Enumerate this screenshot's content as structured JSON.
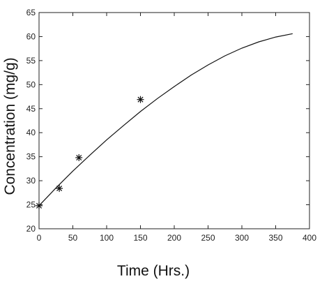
{
  "chart_data": {
    "type": "scatter",
    "xlabel": "Time (Hrs.)",
    "ylabel": "Concentration  (mg/g)",
    "xlim": [
      0,
      400
    ],
    "ylim": [
      20,
      65
    ],
    "xticks": [
      0,
      50,
      100,
      150,
      200,
      250,
      300,
      350,
      400
    ],
    "yticks": [
      20,
      25,
      30,
      35,
      40,
      45,
      50,
      55,
      60,
      65
    ],
    "grid": false,
    "series": [
      {
        "kind": "points",
        "marker": "asterisk",
        "x": [
          0,
          30,
          59,
          150
        ],
        "y": [
          24.8,
          28.4,
          34.8,
          46.9
        ]
      },
      {
        "kind": "fitted-curve",
        "x": [
          0,
          25,
          50,
          75,
          100,
          125,
          150,
          175,
          200,
          225,
          250,
          275,
          300,
          325,
          350,
          375
        ],
        "y": [
          24.8,
          28.5,
          32.0,
          35.3,
          38.5,
          41.5,
          44.4,
          47.1,
          49.6,
          52.0,
          54.1,
          56.0,
          57.6,
          58.9,
          59.9,
          60.6
        ]
      }
    ],
    "colors": {
      "line": "#111111",
      "axis": "#222222",
      "background": "#ffffff"
    }
  }
}
